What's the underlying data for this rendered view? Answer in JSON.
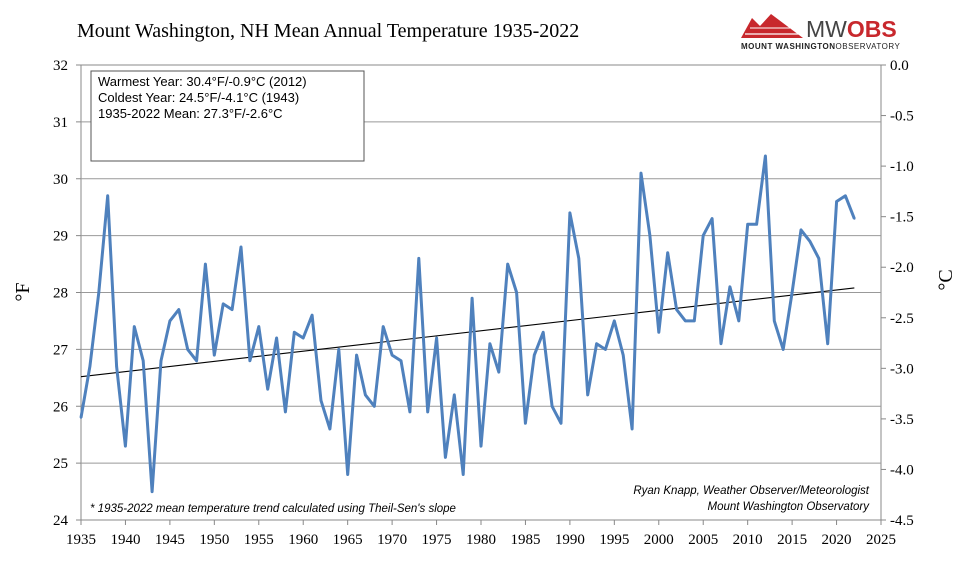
{
  "logo": {
    "main_light": "MW",
    "main_bold": "OBS",
    "sub_bold": "MOUNT WASHINGTON",
    "sub_light": "OBSERVATORY",
    "accent_color": "#c8282d"
  },
  "chart_data": {
    "type": "line",
    "title": "Mount Washington, NH Mean Annual Temperature 1935-2022",
    "xlabel": "",
    "ylabel": "°F",
    "y2label": "°C",
    "xlim": [
      1935,
      2025
    ],
    "ylim": [
      24,
      32
    ],
    "y2lim": [
      -4.5,
      0.0
    ],
    "x_ticks": [
      1935,
      1940,
      1945,
      1950,
      1955,
      1960,
      1965,
      1970,
      1975,
      1980,
      1985,
      1990,
      1995,
      2000,
      2005,
      2010,
      2015,
      2020,
      2025
    ],
    "y_ticks": [
      24,
      25,
      26,
      27,
      28,
      29,
      30,
      31,
      32
    ],
    "y2_ticks": [
      "0.0",
      "-0.5",
      "-1.0",
      "-1.5",
      "-2.0",
      "-2.5",
      "-3.0",
      "-3.5",
      "-4.0",
      "-4.5"
    ],
    "grid": "horizontal",
    "series_color": "#4f81bd",
    "series": [
      {
        "x": [
          1935,
          1936,
          1937,
          1938,
          1939,
          1940,
          1941,
          1942,
          1943,
          1944,
          1945,
          1946,
          1947,
          1948,
          1949,
          1950,
          1951,
          1952,
          1953,
          1954,
          1955,
          1956,
          1957,
          1958,
          1959,
          1960,
          1961,
          1962,
          1963,
          1964,
          1965,
          1966,
          1967,
          1968,
          1969,
          1970,
          1971,
          1972,
          1973,
          1974,
          1975,
          1976,
          1977,
          1978,
          1979,
          1980,
          1981,
          1982,
          1983,
          1984,
          1985,
          1986,
          1987,
          1988,
          1989,
          1990,
          1991,
          1992,
          1993,
          1994,
          1995,
          1996,
          1997,
          1998,
          1999,
          2000,
          2001,
          2002,
          2003,
          2004,
          2005,
          2006,
          2007,
          2008,
          2009,
          2010,
          2011,
          2012,
          2013,
          2014,
          2015,
          2016,
          2017,
          2018,
          2019,
          2020,
          2021,
          2022
        ],
        "values": [
          25.8,
          26.7,
          28.0,
          29.7,
          26.7,
          25.3,
          27.4,
          26.8,
          24.5,
          26.8,
          27.5,
          27.7,
          27.0,
          26.8,
          28.5,
          26.9,
          27.8,
          27.7,
          28.8,
          26.8,
          27.4,
          26.3,
          27.2,
          25.9,
          27.3,
          27.2,
          27.6,
          26.1,
          25.6,
          27.0,
          24.8,
          26.9,
          26.2,
          26.0,
          27.4,
          26.9,
          26.8,
          25.9,
          28.6,
          25.9,
          27.2,
          25.1,
          26.2,
          24.8,
          27.9,
          25.3,
          27.1,
          26.6,
          28.5,
          28.0,
          25.7,
          26.9,
          27.3,
          26.0,
          25.7,
          29.4,
          28.6,
          26.2,
          27.1,
          27.0,
          27.5,
          26.9,
          25.6,
          30.1,
          29.0,
          27.3,
          28.7,
          27.7,
          27.5,
          27.5,
          29.0,
          29.3,
          27.1,
          28.1,
          27.5,
          29.2,
          29.2,
          30.4,
          27.5,
          27.0,
          28.0,
          29.1,
          28.9,
          28.6,
          27.1,
          29.6,
          29.7,
          29.3
        ]
      }
    ],
    "trend": {
      "x": [
        1935,
        2022
      ],
      "values": [
        26.52,
        28.08
      ],
      "color": "#000000"
    },
    "info_box": [
      "Warmest Year: 30.4°F/-0.9°C (2012)",
      "Coldest Year: 24.5°F/-4.1°C (1943)",
      "1935-2022 Mean: 27.3°F/-2.6°C"
    ],
    "footnote": "* 1935-2022 mean temperature trend calculated using Theil-Sen's slope",
    "credit": [
      "Ryan Knapp, Weather Observer/Meteorologist",
      "Mount Washington Observatory"
    ]
  }
}
